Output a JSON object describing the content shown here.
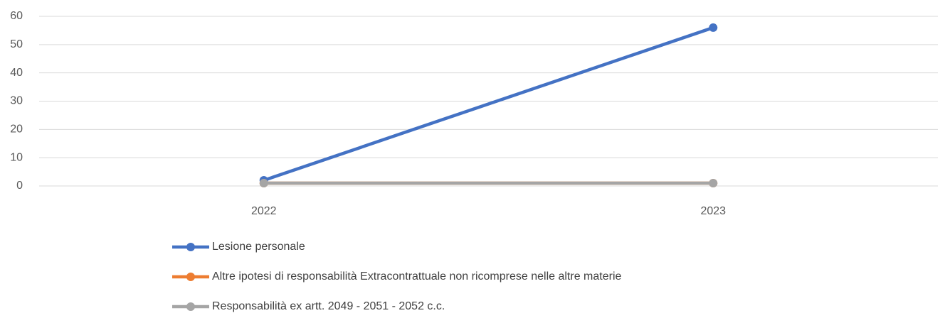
{
  "chart_data": {
    "type": "line",
    "categories": [
      "2022",
      "2023"
    ],
    "series": [
      {
        "name": "Lesione personale",
        "color": "#4472c4",
        "values": [
          2,
          56
        ]
      },
      {
        "name": "Altre ipotesi di responsabilità Extracontrattuale non ricomprese nelle altre materie",
        "color": "#ed7d31",
        "values": [
          1,
          1
        ]
      },
      {
        "name": "Responsabilità ex artt. 2049 - 2051 - 2052 c.c.",
        "color": "#a5a5a5",
        "values": [
          1,
          1
        ]
      }
    ],
    "ylim": [
      0,
      60
    ],
    "yticks": [
      0,
      10,
      20,
      30,
      40,
      50,
      60
    ],
    "grid": true,
    "legend": "bottom"
  }
}
